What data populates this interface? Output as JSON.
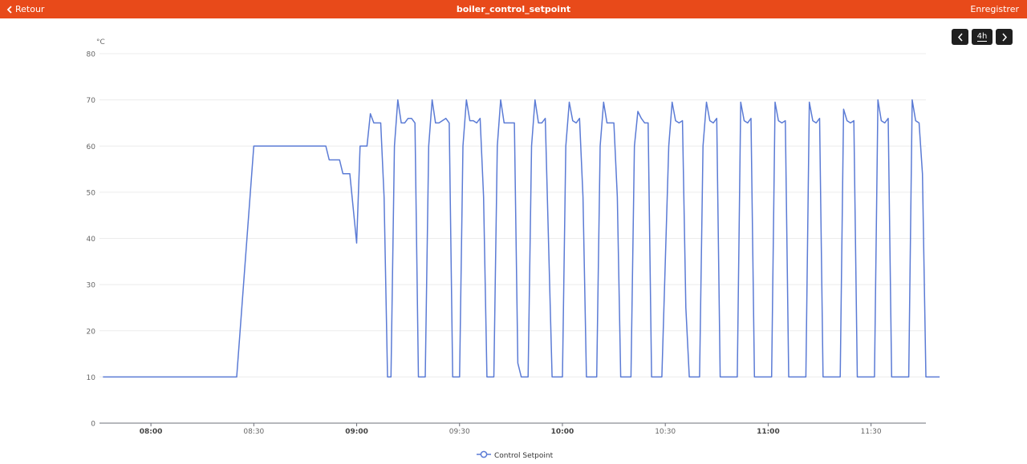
{
  "header": {
    "back_label": "Retour",
    "title": "boiler_control_setpoint",
    "save_label": "Enregistrer",
    "background_color": "#e84a1a"
  },
  "range_controls": {
    "prev_icon": "chevron-left-icon",
    "range_label": "4h",
    "next_icon": "chevron-right-icon"
  },
  "chart_data": {
    "type": "line",
    "ylabel": "°C",
    "ylim": [
      0,
      80
    ],
    "yticks": [
      0,
      10,
      20,
      30,
      40,
      50,
      60,
      70,
      80
    ],
    "xlim": [
      "07:45",
      "11:46"
    ],
    "xticks": [
      {
        "label": "08:00",
        "t": "08:00",
        "bold": true
      },
      {
        "label": "08:30",
        "t": "08:30",
        "bold": false
      },
      {
        "label": "09:00",
        "t": "09:00",
        "bold": true
      },
      {
        "label": "09:30",
        "t": "09:30",
        "bold": false
      },
      {
        "label": "10:00",
        "t": "10:00",
        "bold": true
      },
      {
        "label": "10:30",
        "t": "10:30",
        "bold": false
      },
      {
        "label": "11:00",
        "t": "11:00",
        "bold": true
      },
      {
        "label": "11:30",
        "t": "11:30",
        "bold": false
      }
    ],
    "grid": true,
    "legend_position": "bottom-center",
    "series": [
      {
        "name": "Control Setpoint",
        "color": "#5b7bd5",
        "points": [
          [
            "07:46",
            10
          ],
          [
            "08:25",
            10
          ],
          [
            "08:30",
            60
          ],
          [
            "08:51",
            60
          ],
          [
            "08:52",
            57
          ],
          [
            "08:55",
            57
          ],
          [
            "08:56",
            54
          ],
          [
            "08:58",
            54
          ],
          [
            "09:00",
            39
          ],
          [
            "09:01",
            60
          ],
          [
            "09:03",
            60
          ],
          [
            "09:04",
            67
          ],
          [
            "09:05",
            65
          ],
          [
            "09:07",
            65
          ],
          [
            "09:08",
            49
          ],
          [
            "09:09",
            10
          ],
          [
            "09:10",
            10
          ],
          [
            "09:11",
            60
          ],
          [
            "09:12",
            70
          ],
          [
            "09:13",
            65
          ],
          [
            "09:14",
            65
          ],
          [
            "09:15",
            66
          ],
          [
            "09:16",
            66
          ],
          [
            "09:17",
            65
          ],
          [
            "09:18",
            10
          ],
          [
            "09:20",
            10
          ],
          [
            "09:21",
            60
          ],
          [
            "09:22",
            70
          ],
          [
            "09:23",
            65
          ],
          [
            "09:24",
            65
          ],
          [
            "09:26",
            66
          ],
          [
            "09:27",
            65
          ],
          [
            "09:28",
            10
          ],
          [
            "09:30",
            10
          ],
          [
            "09:31",
            60
          ],
          [
            "09:32",
            70
          ],
          [
            "09:33",
            65.5
          ],
          [
            "09:34",
            65.5
          ],
          [
            "09:35",
            65
          ],
          [
            "09:36",
            66
          ],
          [
            "09:37",
            49
          ],
          [
            "09:38",
            10
          ],
          [
            "09:40",
            10
          ],
          [
            "09:41",
            60
          ],
          [
            "09:42",
            70
          ],
          [
            "09:43",
            65
          ],
          [
            "09:46",
            65
          ],
          [
            "09:47",
            13
          ],
          [
            "09:48",
            10
          ],
          [
            "09:50",
            10
          ],
          [
            "09:51",
            60
          ],
          [
            "09:52",
            70
          ],
          [
            "09:53",
            65
          ],
          [
            "09:54",
            65
          ],
          [
            "09:55",
            66
          ],
          [
            "09:57",
            10
          ],
          [
            "10:00",
            10
          ],
          [
            "10:01",
            60
          ],
          [
            "10:02",
            69.5
          ],
          [
            "10:03",
            65.5
          ],
          [
            "10:04",
            65
          ],
          [
            "10:05",
            66
          ],
          [
            "10:06",
            49
          ],
          [
            "10:07",
            10
          ],
          [
            "10:10",
            10
          ],
          [
            "10:11",
            60
          ],
          [
            "10:12",
            69.5
          ],
          [
            "10:13",
            65
          ],
          [
            "10:15",
            65
          ],
          [
            "10:16",
            49
          ],
          [
            "10:17",
            10
          ],
          [
            "10:20",
            10
          ],
          [
            "10:21",
            60
          ],
          [
            "10:22",
            67.5
          ],
          [
            "10:23",
            66
          ],
          [
            "10:24",
            65
          ],
          [
            "10:25",
            65
          ],
          [
            "10:26",
            10
          ],
          [
            "10:29",
            10
          ],
          [
            "10:31",
            60
          ],
          [
            "10:32",
            69.5
          ],
          [
            "10:33",
            65.5
          ],
          [
            "10:34",
            65
          ],
          [
            "10:35",
            65.5
          ],
          [
            "10:36",
            25
          ],
          [
            "10:37",
            10
          ],
          [
            "10:40",
            10
          ],
          [
            "10:41",
            60
          ],
          [
            "10:42",
            69.5
          ],
          [
            "10:43",
            65.5
          ],
          [
            "10:44",
            65
          ],
          [
            "10:45",
            66
          ],
          [
            "10:46",
            10
          ],
          [
            "10:51",
            10
          ],
          [
            "10:52",
            69.5
          ],
          [
            "10:53",
            65.5
          ],
          [
            "10:54",
            65
          ],
          [
            "10:55",
            66
          ],
          [
            "10:56",
            10
          ],
          [
            "11:01",
            10
          ],
          [
            "11:02",
            69.5
          ],
          [
            "11:03",
            65.5
          ],
          [
            "11:04",
            65
          ],
          [
            "11:05",
            65.5
          ],
          [
            "11:06",
            10
          ],
          [
            "11:11",
            10
          ],
          [
            "11:12",
            69.5
          ],
          [
            "11:13",
            65.5
          ],
          [
            "11:14",
            65
          ],
          [
            "11:15",
            66
          ],
          [
            "11:16",
            10
          ],
          [
            "11:21",
            10
          ],
          [
            "11:22",
            68
          ],
          [
            "11:23",
            65.5
          ],
          [
            "11:24",
            65
          ],
          [
            "11:25",
            65.5
          ],
          [
            "11:26",
            10
          ],
          [
            "11:31",
            10
          ],
          [
            "11:32",
            70
          ],
          [
            "11:33",
            65.5
          ],
          [
            "11:34",
            65
          ],
          [
            "11:35",
            66
          ],
          [
            "11:36",
            10
          ],
          [
            "11:41",
            10
          ],
          [
            "11:42",
            70
          ],
          [
            "11:43",
            65.5
          ],
          [
            "11:44",
            65
          ],
          [
            "11:45",
            54
          ],
          [
            "11:46",
            10
          ],
          [
            "11:50",
            10
          ]
        ]
      }
    ]
  }
}
